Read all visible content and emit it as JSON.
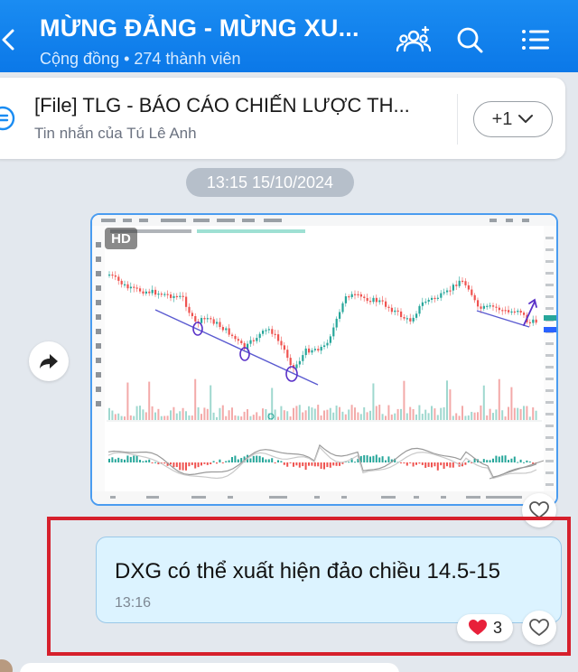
{
  "header": {
    "title": "MỪNG ĐẢNG - MỪNG XU...",
    "subtitle": "Cộng đồng • 274 thành viên"
  },
  "pinned": {
    "title": "[File] TLG - BÁO CÁO CHIẾN LƯỢC TH...",
    "subtitle": "Tin nhắn của Tú Lê Anh",
    "more_label": "+1"
  },
  "timestamp": "13:15 15/10/2024",
  "image": {
    "badge": "HD"
  },
  "message": {
    "text": "DXG có thể xuất hiện đảo chiều 14.5-15",
    "time": "13:16",
    "reaction_count": "3"
  },
  "colors": {
    "header_blue": "#0b78e8",
    "bubble_blue": "#dcf3ff",
    "highlight_red": "#d6202c",
    "candle_up": "#26a69a",
    "candle_down": "#ef5350"
  },
  "icons": [
    "back-icon",
    "group-icon",
    "search-icon",
    "menu-icon",
    "file-icon",
    "chevron-down-icon",
    "share-icon",
    "heart-icon"
  ]
}
